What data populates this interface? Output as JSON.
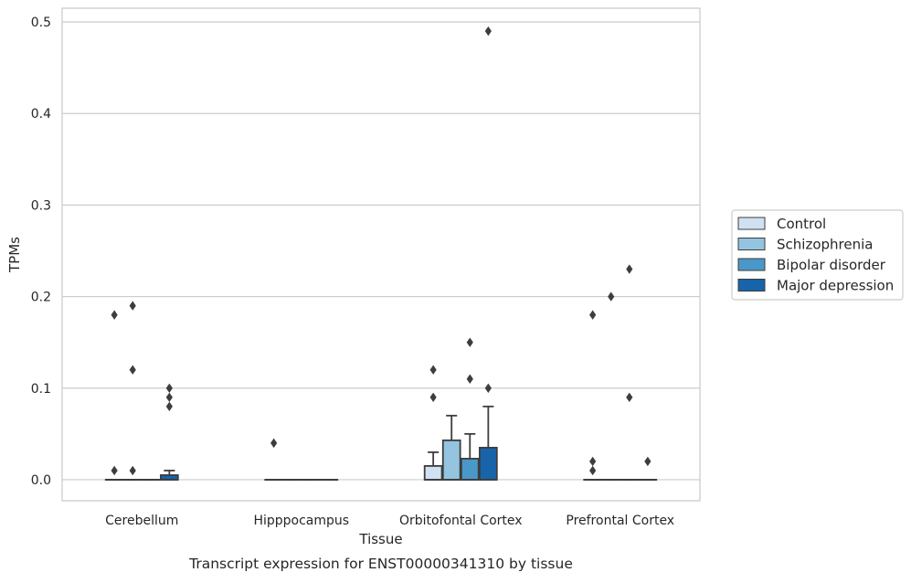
{
  "chart_data": {
    "type": "box",
    "xlabel": "Tissue",
    "ylabel": "TPMs",
    "caption": "Transcript expression for ENST00000341310 by tissue",
    "categories": [
      "Cerebellum",
      "Hipppocampus",
      "Orbitofontal Cortex",
      "Prefrontal Cortex"
    ],
    "ylim": [
      -0.023,
      0.515
    ],
    "yticks": [
      0.0,
      0.1,
      0.2,
      0.3,
      0.4,
      0.5
    ],
    "ytick_labels": [
      "0.0",
      "0.1",
      "0.2",
      "0.3",
      "0.4",
      "0.5"
    ],
    "grid": true,
    "legend_position": "center-right",
    "series": [
      {
        "name": "Control",
        "color": "#d0e1f2",
        "boxes": [
          {
            "q1": 0,
            "median": 0,
            "q3": 0,
            "whisker_low": 0,
            "whisker_high": 0,
            "outliers": [
              0.18,
              0.01
            ]
          },
          {
            "q1": 0,
            "median": 0,
            "q3": 0,
            "whisker_low": 0,
            "whisker_high": 0,
            "outliers": [
              0.04
            ]
          },
          {
            "q1": 0,
            "median": 0,
            "q3": 0.015,
            "whisker_low": 0,
            "whisker_high": 0.03,
            "outliers": [
              0.12,
              0.09
            ]
          },
          {
            "q1": 0,
            "median": 0,
            "q3": 0,
            "whisker_low": 0,
            "whisker_high": 0,
            "outliers": [
              0.18,
              0.02,
              0.01
            ]
          }
        ]
      },
      {
        "name": "Schizophrenia",
        "color": "#94c4df",
        "boxes": [
          {
            "q1": 0,
            "median": 0,
            "q3": 0,
            "whisker_low": 0,
            "whisker_high": 0,
            "outliers": [
              0.19,
              0.12,
              0.01
            ]
          },
          {
            "q1": 0,
            "median": 0,
            "q3": 0,
            "whisker_low": 0,
            "whisker_high": 0,
            "outliers": []
          },
          {
            "q1": 0,
            "median": 0,
            "q3": 0.043,
            "whisker_low": 0,
            "whisker_high": 0.07,
            "outliers": []
          },
          {
            "q1": 0,
            "median": 0,
            "q3": 0,
            "whisker_low": 0,
            "whisker_high": 0,
            "outliers": [
              0.2
            ]
          }
        ]
      },
      {
        "name": "Bipolar disorder",
        "color": "#4a98c9",
        "boxes": [
          {
            "q1": 0,
            "median": 0,
            "q3": 0,
            "whisker_low": 0,
            "whisker_high": 0,
            "outliers": []
          },
          {
            "q1": 0,
            "median": 0,
            "q3": 0,
            "whisker_low": 0,
            "whisker_high": 0,
            "outliers": []
          },
          {
            "q1": 0,
            "median": 0,
            "q3": 0.023,
            "whisker_low": 0,
            "whisker_high": 0.05,
            "outliers": [
              0.15,
              0.11
            ]
          },
          {
            "q1": 0,
            "median": 0,
            "q3": 0,
            "whisker_low": 0,
            "whisker_high": 0,
            "outliers": [
              0.23,
              0.09
            ]
          }
        ]
      },
      {
        "name": "Major depression",
        "color": "#1764ab",
        "boxes": [
          {
            "q1": 0,
            "median": 0,
            "q3": 0.005,
            "whisker_low": 0,
            "whisker_high": 0.01,
            "outliers": [
              0.1,
              0.09,
              0.08
            ]
          },
          {
            "q1": 0,
            "median": 0,
            "q3": 0,
            "whisker_low": 0,
            "whisker_high": 0,
            "outliers": []
          },
          {
            "q1": 0,
            "median": 0,
            "q3": 0.035,
            "whisker_low": 0,
            "whisker_high": 0.08,
            "outliers": [
              0.49,
              0.1
            ]
          },
          {
            "q1": 0,
            "median": 0,
            "q3": 0,
            "whisker_low": 0,
            "whisker_high": 0,
            "outliers": [
              0.02
            ]
          }
        ]
      }
    ]
  }
}
